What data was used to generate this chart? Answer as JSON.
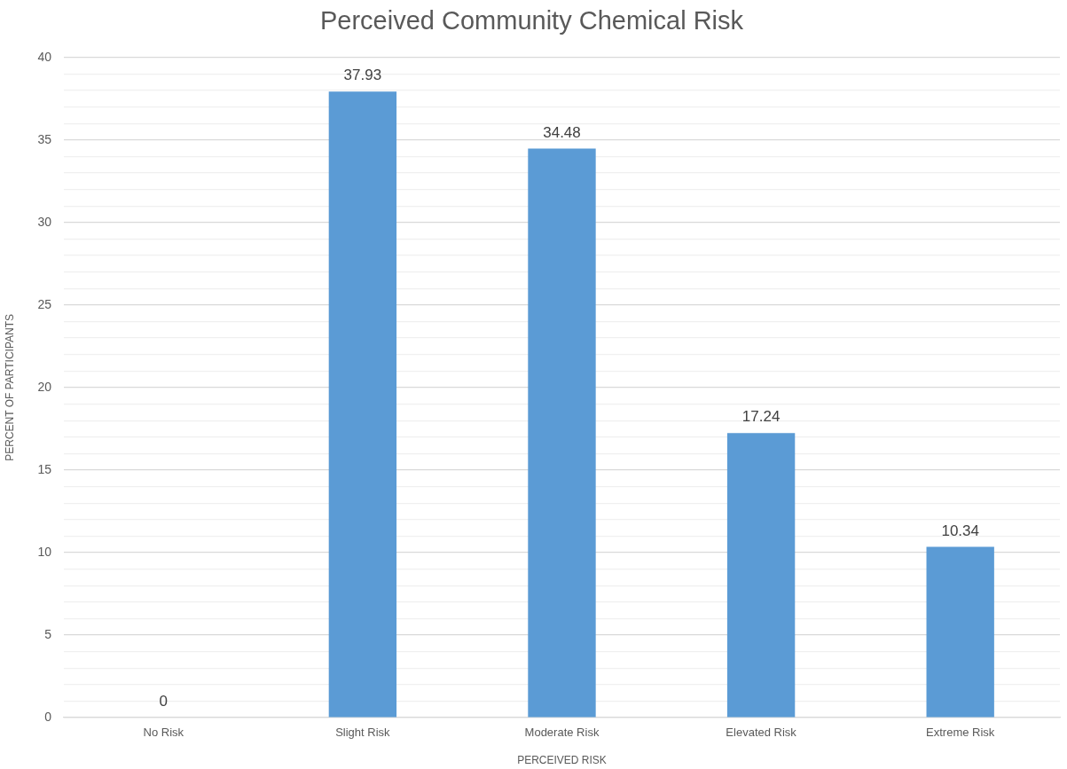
{
  "chart_data": {
    "type": "bar",
    "title": "Perceived Community Chemical Risk",
    "xlabel": "PERCEIVED RISK",
    "ylabel": "PERCENT OF PARTICIPANTS",
    "categories": [
      "No Risk",
      "Slight Risk",
      "Moderate Risk",
      "Elevated Risk",
      "Extreme Risk"
    ],
    "values": [
      0,
      37.93,
      34.48,
      17.24,
      10.34
    ],
    "color": "#5b9bd5",
    "ylim": [
      0,
      40
    ],
    "yticks": [
      0,
      {
        "value": 1,
        "label": null
      },
      {
        "value": 2,
        "label": null
      },
      {
        "value": 3,
        "label": null
      },
      {
        "value": 4,
        "label": null
      },
      5,
      {
        "value": 6,
        "label": null
      },
      {
        "value": 7,
        "label": null
      },
      {
        "value": 8,
        "label": null
      },
      {
        "value": 9,
        "label": null
      },
      10,
      {
        "value": 11,
        "label": null
      },
      {
        "value": 12,
        "label": null
      },
      {
        "value": 13,
        "label": null
      },
      {
        "value": 14,
        "label": null
      },
      15,
      {
        "value": 16,
        "label": null
      },
      {
        "value": 17,
        "label": null
      },
      {
        "value": 18,
        "label": null
      },
      {
        "value": 19,
        "label": null
      },
      20,
      {
        "value": 21,
        "label": null
      },
      {
        "value": 22,
        "label": null
      },
      {
        "value": 23,
        "label": null
      },
      {
        "value": 24,
        "label": null
      },
      25,
      {
        "value": 26,
        "label": null
      },
      {
        "value": 27,
        "label": null
      },
      {
        "value": 28,
        "label": null
      },
      {
        "value": 29,
        "label": null
      },
      30,
      {
        "value": 31,
        "label": null
      },
      {
        "value": 32,
        "label": null
      },
      {
        "value": 33,
        "label": null
      },
      {
        "value": 34,
        "label": null
      },
      35,
      {
        "value": 36,
        "label": null
      },
      {
        "value": 37,
        "label": null
      },
      {
        "value": 38,
        "label": null
      },
      {
        "value": 39,
        "label": null
      },
      40
    ],
    "grid": "y",
    "data_labels": true
  }
}
